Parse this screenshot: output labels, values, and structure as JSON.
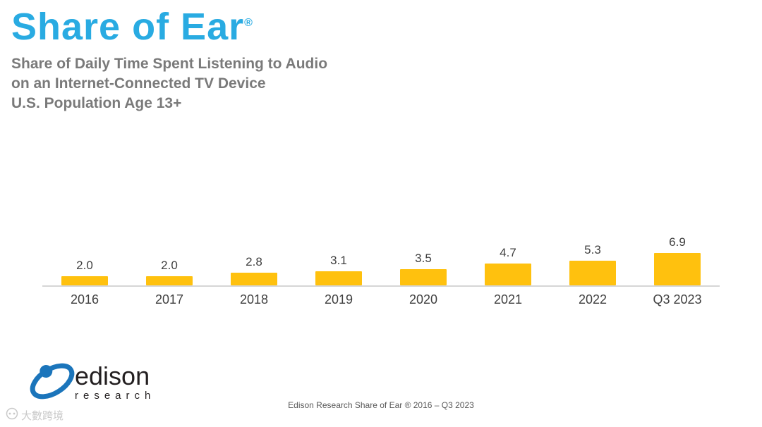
{
  "header": {
    "title": "Share of Ear",
    "registered_mark": "®",
    "title_color": "#29abe2",
    "subtitle_lines": [
      "Share of Daily Time Spent Listening to Audio",
      "on an Internet-Connected TV Device",
      "U.S. Population Age 13+"
    ]
  },
  "chart_data": {
    "type": "bar",
    "title": "Share of Daily Time Spent Listening to Audio on an Internet-Connected TV Device, U.S. Population Age 13+",
    "categories": [
      "2016",
      "2017",
      "2018",
      "2019",
      "2020",
      "2021",
      "2022",
      "Q3 2023"
    ],
    "values": [
      2.0,
      2.0,
      2.8,
      3.1,
      3.5,
      4.7,
      5.3,
      6.9
    ],
    "data_labels": [
      "2.0",
      "2.0",
      "2.8",
      "3.1",
      "3.5",
      "4.7",
      "5.3",
      "6.9"
    ],
    "xlabel": "",
    "ylabel": "",
    "ylim": [
      0,
      8
    ],
    "bar_color": "#FFC10E",
    "grid": false,
    "legend": "none"
  },
  "logo": {
    "name": "edison",
    "subname": "research",
    "mark_color": "#1b75bb"
  },
  "footer": {
    "text": "Edison Research Share of Ear ® 2016 – Q3 2023"
  },
  "watermark": {
    "text": "大數跨境"
  }
}
